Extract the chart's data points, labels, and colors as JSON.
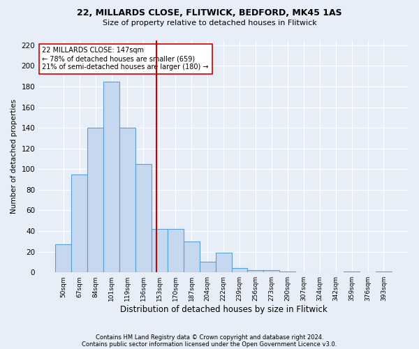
{
  "title1": "22, MILLARDS CLOSE, FLITWICK, BEDFORD, MK45 1AS",
  "title2": "Size of property relative to detached houses in Flitwick",
  "xlabel": "Distribution of detached houses by size in Flitwick",
  "ylabel": "Number of detached properties",
  "footnote1": "Contains HM Land Registry data © Crown copyright and database right 2024.",
  "footnote2": "Contains public sector information licensed under the Open Government Licence v3.0.",
  "bins": [
    "50sqm",
    "67sqm",
    "84sqm",
    "101sqm",
    "119sqm",
    "136sqm",
    "153sqm",
    "170sqm",
    "187sqm",
    "204sqm",
    "222sqm",
    "239sqm",
    "256sqm",
    "273sqm",
    "290sqm",
    "307sqm",
    "324sqm",
    "342sqm",
    "359sqm",
    "376sqm",
    "393sqm"
  ],
  "values": [
    27,
    95,
    140,
    185,
    140,
    105,
    42,
    42,
    30,
    10,
    19,
    4,
    2,
    2,
    1,
    0,
    0,
    0,
    1,
    0,
    1
  ],
  "bar_color": "#c5d8f0",
  "bar_edge_color": "#5a9fd4",
  "vline_x": 5.82,
  "vline_color": "#cc0000",
  "annotation_text": "22 MILLARDS CLOSE: 147sqm\n← 78% of detached houses are smaller (659)\n21% of semi-detached houses are larger (180) →",
  "annotation_box_color": "#ffffff",
  "annotation_box_edge": "#cc0000",
  "ylim": [
    0,
    225
  ],
  "yticks": [
    0,
    20,
    40,
    60,
    80,
    100,
    120,
    140,
    160,
    180,
    200,
    220
  ],
  "background_color": "#e8eef8",
  "grid_color": "#ffffff"
}
